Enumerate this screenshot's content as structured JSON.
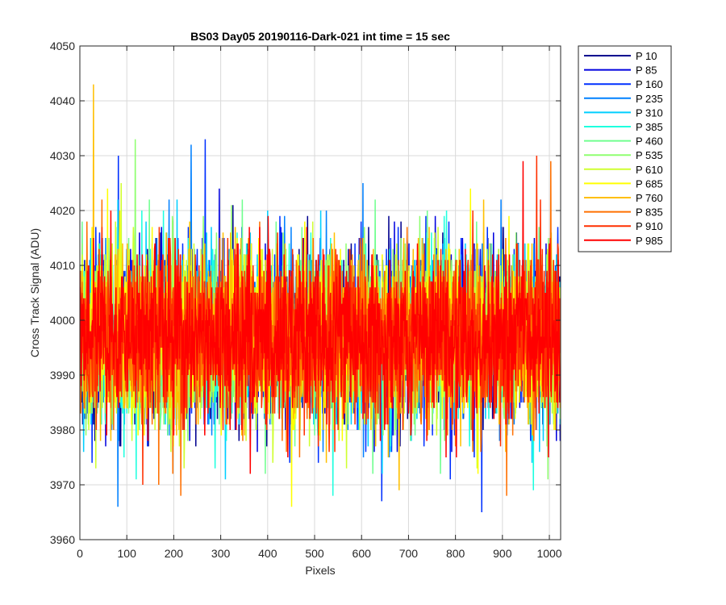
{
  "chart_data": {
    "type": "line",
    "title": "BS03 Day05 20190116-Dark-021 int time = 15 sec",
    "xlabel": "Pixels",
    "ylabel": "Cross Track Signal (ADU)",
    "xlim": [
      0,
      1024
    ],
    "ylim": [
      3960,
      4050
    ],
    "xticks": [
      "0",
      "100",
      "200",
      "300",
      "400",
      "500",
      "600",
      "700",
      "800",
      "900",
      "1000"
    ],
    "yticks": [
      "3960",
      "3970",
      "3980",
      "3990",
      "4000",
      "4010",
      "4020",
      "4030",
      "4040",
      "4050"
    ],
    "grid": true,
    "legend_position": "outside-top-right",
    "noise": {
      "mean": 3997,
      "sd": 7.5,
      "points_per_series": 1024
    },
    "series": [
      {
        "name": "P 10",
        "color": "#00008f",
        "min": 3977,
        "max": 4021
      },
      {
        "name": "P 85",
        "color": "#0000df",
        "min": 3976,
        "max": 4024
      },
      {
        "name": "P 160",
        "color": "#0030ff",
        "min": 3965,
        "max": 4033
      },
      {
        "name": "P 235",
        "color": "#0080ff",
        "min": 3966,
        "max": 4032
      },
      {
        "name": "P 310",
        "color": "#00cfff",
        "min": 3971,
        "max": 4022
      },
      {
        "name": "P 385",
        "color": "#1fffdf",
        "min": 3968,
        "max": 4020
      },
      {
        "name": "P 460",
        "color": "#70ff8f",
        "min": 3972,
        "max": 4022
      },
      {
        "name": "P 535",
        "color": "#8fff70",
        "min": 3971,
        "max": 4033
      },
      {
        "name": "P 610",
        "color": "#cfff30",
        "min": 3973,
        "max": 4025
      },
      {
        "name": "P 685",
        "color": "#ffff00",
        "min": 3966,
        "max": 4024
      },
      {
        "name": "P 760",
        "color": "#ffbf00",
        "min": 3969,
        "max": 4043
      },
      {
        "name": "P 835",
        "color": "#ff7000",
        "min": 3968,
        "max": 4029
      },
      {
        "name": "P 910",
        "color": "#ff3000",
        "min": 3970,
        "max": 4030
      },
      {
        "name": "P 985",
        "color": "#ff0000",
        "min": 3972,
        "max": 4029
      }
    ]
  }
}
